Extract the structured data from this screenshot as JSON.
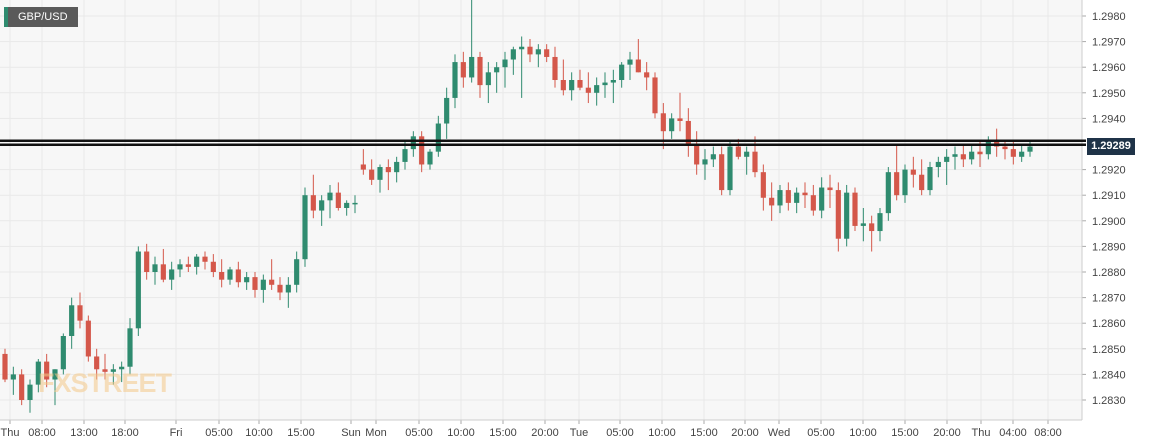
{
  "instrument": "GBP/USD",
  "current_price_label": "1.29289",
  "watermark": "FXSTREET",
  "colors": {
    "up": "#2f8b6f",
    "down": "#d4574a",
    "grid": "#e9e9e9",
    "axis": "#cccccc",
    "level": "#111111",
    "tag": "#1f3348"
  },
  "chart_data": {
    "type": "candlestick",
    "title": "GBP/USD",
    "ylim": [
      1.2822,
      1.2988
    ],
    "y_ticks": [
      "1.2830",
      "1.2840",
      "1.2850",
      "1.2860",
      "1.2870",
      "1.2880",
      "1.2890",
      "1.2900",
      "1.2910",
      "1.2920",
      "1.2930",
      "1.2940",
      "1.2950",
      "1.2960",
      "1.2970",
      "1.2980"
    ],
    "x_tick_labels": [
      "Thu",
      "08:00",
      "13:00",
      "18:00",
      "Fri",
      "05:00",
      "10:00",
      "15:00",
      "Sun",
      "Mon",
      "05:00",
      "10:00",
      "15:00",
      "20:00",
      "Tue",
      "05:00",
      "10:00",
      "15:00",
      "20:00",
      "Wed",
      "05:00",
      "10:00",
      "15:00",
      "20:00",
      "Thu",
      "04:00",
      "08:00"
    ],
    "horizontal_level": 1.29305,
    "last_price": 1.29289,
    "grid": true,
    "candles": [
      [
        1.2848,
        1.285,
        1.2837,
        1.2838
      ],
      [
        1.2838,
        1.2843,
        1.2832,
        1.284
      ],
      [
        1.284,
        1.2842,
        1.2828,
        1.283
      ],
      [
        1.283,
        1.2838,
        1.2825,
        1.2836
      ],
      [
        1.2836,
        1.2846,
        1.2833,
        1.2845
      ],
      [
        1.2845,
        1.2848,
        1.2835,
        1.2838
      ],
      [
        1.2838,
        1.2842,
        1.2828,
        1.2842
      ],
      [
        1.2842,
        1.2856,
        1.284,
        1.2855
      ],
      [
        1.2855,
        1.287,
        1.285,
        1.2867
      ],
      [
        1.2867,
        1.2872,
        1.2858,
        1.2861
      ],
      [
        1.2861,
        1.2863,
        1.2845,
        1.2847
      ],
      [
        1.2847,
        1.285,
        1.2838,
        1.2842
      ],
      [
        1.2842,
        1.2848,
        1.2838,
        1.2841
      ],
      [
        1.2841,
        1.2844,
        1.2836,
        1.2842
      ],
      [
        1.2842,
        1.2845,
        1.2837,
        1.2843
      ],
      [
        1.2843,
        1.2862,
        1.284,
        1.2858
      ],
      [
        1.2858,
        1.289,
        1.2855,
        1.2888
      ],
      [
        1.2888,
        1.2891,
        1.2877,
        1.288
      ],
      [
        1.288,
        1.2886,
        1.2875,
        1.2883
      ],
      [
        1.2883,
        1.2889,
        1.2876,
        1.2877
      ],
      [
        1.2877,
        1.2884,
        1.2873,
        1.2881
      ],
      [
        1.2881,
        1.2885,
        1.2878,
        1.2883
      ],
      [
        1.2883,
        1.2886,
        1.288,
        1.2882
      ],
      [
        1.2882,
        1.2887,
        1.2879,
        1.2886
      ],
      [
        1.2886,
        1.2888,
        1.2881,
        1.2884
      ],
      [
        1.2884,
        1.2887,
        1.2878,
        1.288
      ],
      [
        1.288,
        1.2885,
        1.2874,
        1.2877
      ],
      [
        1.2877,
        1.2882,
        1.2875,
        1.2881
      ],
      [
        1.2881,
        1.2884,
        1.2874,
        1.2876
      ],
      [
        1.2876,
        1.288,
        1.2873,
        1.2878
      ],
      [
        1.2878,
        1.288,
        1.287,
        1.2873
      ],
      [
        1.2873,
        1.2879,
        1.2868,
        1.2877
      ],
      [
        1.2877,
        1.2885,
        1.2873,
        1.2875
      ],
      [
        1.2875,
        1.2878,
        1.2869,
        1.2872
      ],
      [
        1.2872,
        1.2878,
        1.2866,
        1.2875
      ],
      [
        1.2875,
        1.2888,
        1.2872,
        1.2885
      ],
      [
        1.2885,
        1.2913,
        1.2882,
        1.291
      ],
      [
        1.291,
        1.2918,
        1.2901,
        1.2904
      ],
      [
        1.2904,
        1.291,
        1.2898,
        1.2908
      ],
      [
        1.2908,
        1.2914,
        1.2901,
        1.2911
      ],
      [
        1.2911,
        1.2915,
        1.2904,
        1.2905
      ],
      [
        1.2905,
        1.2908,
        1.2902,
        1.2907
      ],
      [
        1.2907,
        1.291,
        1.2903,
        1.2907
      ],
      [
        1.2922,
        1.2928,
        1.2918,
        1.292
      ],
      [
        1.292,
        1.2924,
        1.2914,
        1.2916
      ],
      [
        1.2916,
        1.2922,
        1.2911,
        1.2921
      ],
      [
        1.2921,
        1.2924,
        1.2912,
        1.2919
      ],
      [
        1.2919,
        1.2925,
        1.2915,
        1.2923
      ],
      [
        1.2923,
        1.2931,
        1.292,
        1.2928
      ],
      [
        1.2928,
        1.2935,
        1.2925,
        1.2933
      ],
      [
        1.2933,
        1.2935,
        1.2919,
        1.2922
      ],
      [
        1.2922,
        1.2928,
        1.292,
        1.2927
      ],
      [
        1.2927,
        1.2941,
        1.2925,
        1.2938
      ],
      [
        1.2938,
        1.2952,
        1.2932,
        1.2948
      ],
      [
        1.2948,
        1.2965,
        1.2944,
        1.2962
      ],
      [
        1.2962,
        1.2966,
        1.2952,
        1.2956
      ],
      [
        1.2956,
        1.2987,
        1.2954,
        1.2964
      ],
      [
        1.2964,
        1.2966,
        1.2948,
        1.2953
      ],
      [
        1.2953,
        1.2962,
        1.2946,
        1.2958
      ],
      [
        1.2958,
        1.2962,
        1.295,
        1.296
      ],
      [
        1.296,
        1.2966,
        1.2952,
        1.2963
      ],
      [
        1.2963,
        1.2968,
        1.2957,
        1.2967
      ],
      [
        1.2967,
        1.2972,
        1.2948,
        1.2968
      ],
      [
        1.2968,
        1.2971,
        1.2962,
        1.2965
      ],
      [
        1.2965,
        1.2969,
        1.296,
        1.2967
      ],
      [
        1.2967,
        1.2969,
        1.2962,
        1.2964
      ],
      [
        1.2964,
        1.2968,
        1.2952,
        1.2955
      ],
      [
        1.2955,
        1.2963,
        1.2949,
        1.2951
      ],
      [
        1.2951,
        1.2958,
        1.2947,
        1.2955
      ],
      [
        1.2955,
        1.2959,
        1.2951,
        1.2952
      ],
      [
        1.2952,
        1.2958,
        1.2946,
        1.295
      ],
      [
        1.295,
        1.2956,
        1.2945,
        1.2953
      ],
      [
        1.2953,
        1.2958,
        1.2948,
        1.2954
      ],
      [
        1.2954,
        1.2959,
        1.2946,
        1.2955
      ],
      [
        1.2955,
        1.2962,
        1.2952,
        1.2961
      ],
      [
        1.2961,
        1.2966,
        1.2955,
        1.2963
      ],
      [
        1.2963,
        1.2971,
        1.2958,
        1.2958
      ],
      [
        1.2958,
        1.2962,
        1.2951,
        1.2956
      ],
      [
        1.2956,
        1.2958,
        1.294,
        1.2942
      ],
      [
        1.2942,
        1.2946,
        1.2928,
        1.2935
      ],
      [
        1.2935,
        1.2942,
        1.2932,
        1.294
      ],
      [
        1.294,
        1.295,
        1.2935,
        1.2939
      ],
      [
        1.2939,
        1.2944,
        1.2925,
        1.293
      ],
      [
        1.293,
        1.2935,
        1.2918,
        1.2922
      ],
      [
        1.2922,
        1.2928,
        1.2916,
        1.2924
      ],
      [
        1.2924,
        1.2929,
        1.2921,
        1.2926
      ],
      [
        1.2926,
        1.2929,
        1.291,
        1.2912
      ],
      [
        1.2912,
        1.2931,
        1.291,
        1.2929
      ],
      [
        1.2929,
        1.2932,
        1.2924,
        1.2925
      ],
      [
        1.2925,
        1.2929,
        1.2918,
        1.2927
      ],
      [
        1.2927,
        1.2933,
        1.2917,
        1.2919
      ],
      [
        1.2919,
        1.2922,
        1.2904,
        1.2909
      ],
      [
        1.2909,
        1.2915,
        1.29,
        1.2906
      ],
      [
        1.2906,
        1.2914,
        1.2903,
        1.2912
      ],
      [
        1.2912,
        1.2915,
        1.2904,
        1.2907
      ],
      [
        1.2907,
        1.2913,
        1.2903,
        1.2911
      ],
      [
        1.2911,
        1.2915,
        1.2905,
        1.291
      ],
      [
        1.291,
        1.2914,
        1.2902,
        1.2904
      ],
      [
        1.2904,
        1.2917,
        1.2901,
        1.2913
      ],
      [
        1.2913,
        1.2918,
        1.2905,
        1.2912
      ],
      [
        1.2912,
        1.2915,
        1.2888,
        1.2893
      ],
      [
        1.2893,
        1.2914,
        1.289,
        1.2911
      ],
      [
        1.2911,
        1.2913,
        1.2896,
        1.2898
      ],
      [
        1.2898,
        1.2905,
        1.2892,
        1.2899
      ],
      [
        1.2899,
        1.2902,
        1.2888,
        1.2896
      ],
      [
        1.2896,
        1.2905,
        1.2892,
        1.2903
      ],
      [
        1.2903,
        1.2921,
        1.29,
        1.2919
      ],
      [
        1.2919,
        1.293,
        1.2908,
        1.291
      ],
      [
        1.291,
        1.2922,
        1.2907,
        1.292
      ],
      [
        1.292,
        1.2925,
        1.2913,
        1.2918
      ],
      [
        1.2918,
        1.2924,
        1.291,
        1.2912
      ],
      [
        1.2912,
        1.2923,
        1.291,
        1.2921
      ],
      [
        1.2921,
        1.2925,
        1.2917,
        1.2923
      ],
      [
        1.2923,
        1.2928,
        1.2914,
        1.2925
      ],
      [
        1.2925,
        1.2929,
        1.292,
        1.2926
      ],
      [
        1.2926,
        1.293,
        1.2921,
        1.2924
      ],
      [
        1.2924,
        1.293,
        1.2922,
        1.2927
      ],
      [
        1.2927,
        1.2931,
        1.2921,
        1.2926
      ],
      [
        1.2926,
        1.2933,
        1.2924,
        1.2931
      ],
      [
        1.2931,
        1.2936,
        1.2925,
        1.2929
      ],
      [
        1.2929,
        1.2931,
        1.2924,
        1.2928
      ],
      [
        1.2928,
        1.2931,
        1.2922,
        1.2925
      ],
      [
        1.2925,
        1.293,
        1.2923,
        1.2927
      ],
      [
        1.2927,
        1.2931,
        1.2925,
        1.2929
      ]
    ]
  }
}
